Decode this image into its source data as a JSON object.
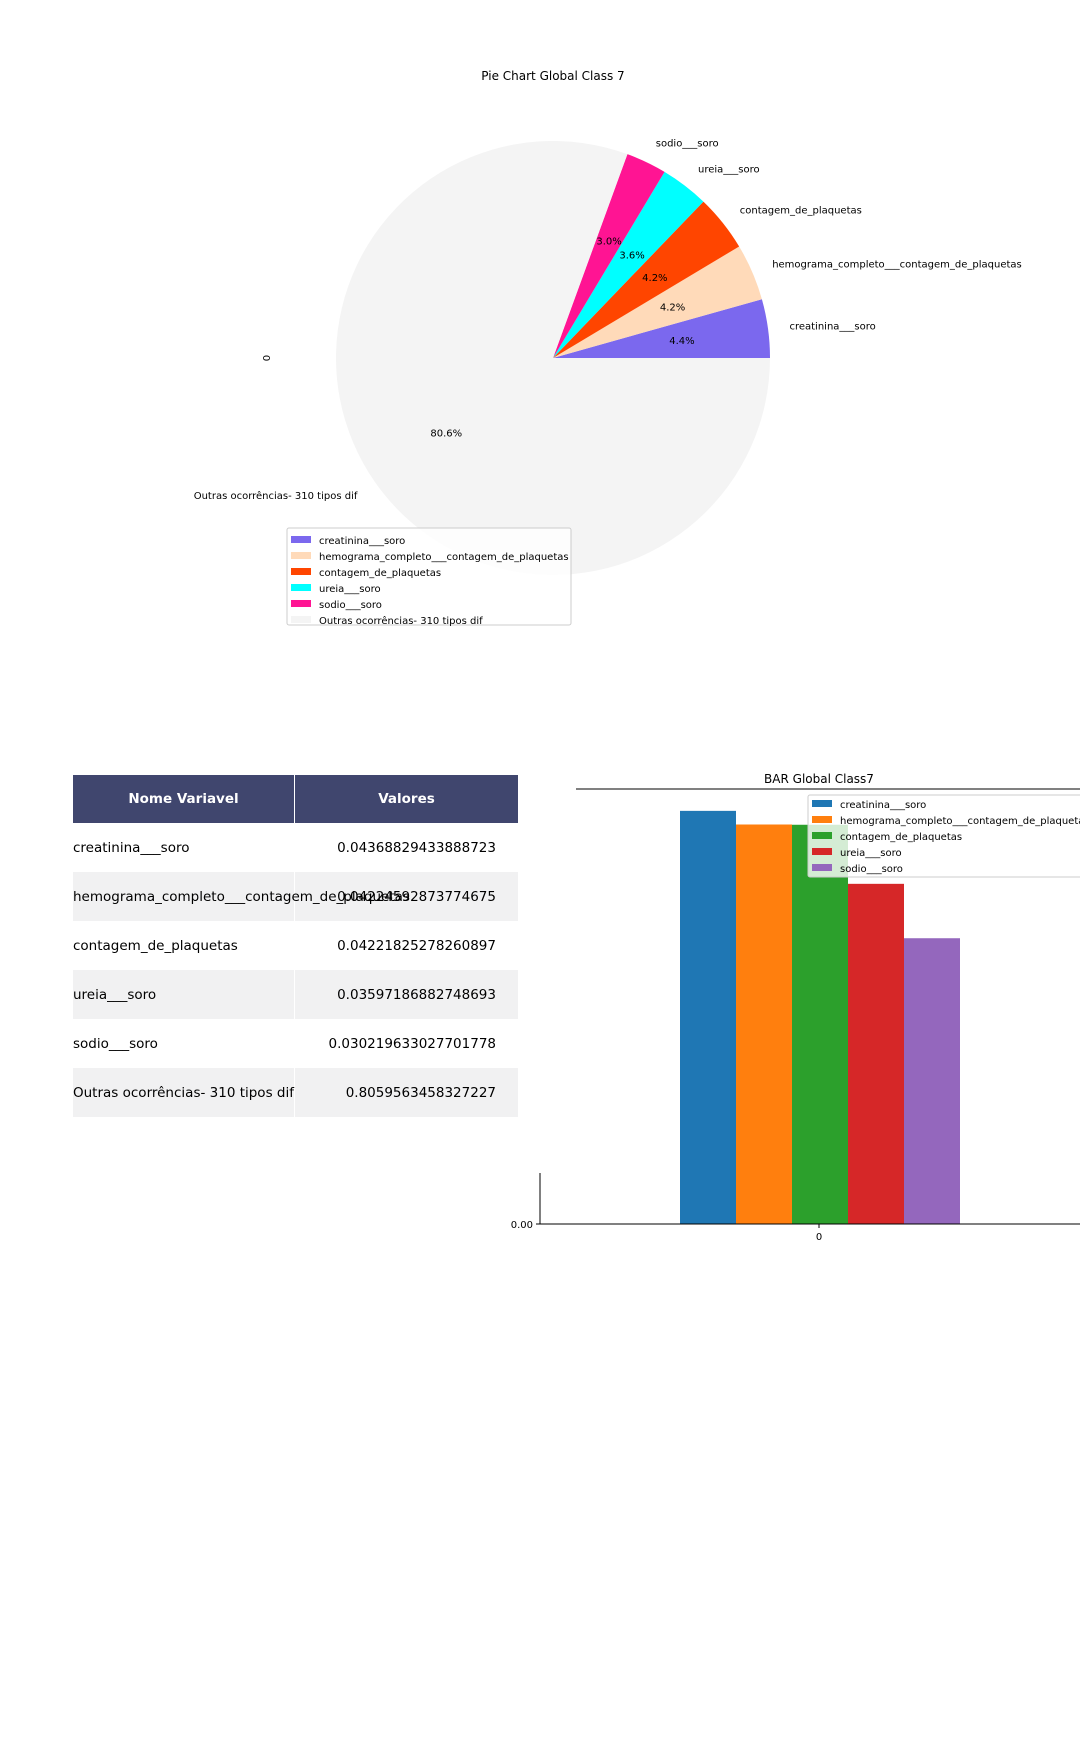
{
  "chart_data": [
    {
      "type": "pie",
      "title": "Pie Chart Global Class 7",
      "ylabel": "0",
      "labels": [
        "creatinina___soro",
        "hemograma_completo___contagem_de_plaquetas",
        "contagem_de_plaquetas",
        "ureia___soro",
        "sodio___soro",
        "Outras ocorrências-  310 tipos  dif"
      ],
      "values": [
        0.04368829433888723,
        0.04224592873774675,
        0.04221825278260897,
        0.03597186882748693,
        0.030219633027701778,
        0.8059563458327227
      ],
      "pct_labels": [
        "4.4%",
        "4.2%",
        "4.2%",
        "3.6%",
        "3.0%",
        "80.6%"
      ],
      "colors": [
        "#7b68ee",
        "#ffdab9",
        "#ff4500",
        "#00ffff",
        "#ff1493",
        "#f4f4f4"
      ],
      "legend": "bottom-center"
    },
    {
      "type": "table",
      "columns": [
        "Nome Variavel",
        "Valores"
      ],
      "rows": [
        [
          "creatinina___soro",
          "0.04368829433888723"
        ],
        [
          "hemograma_completo___contagem_de_plaquetas",
          "0.04224592873774675"
        ],
        [
          "contagem_de_plaquetas",
          "0.04221825278260897"
        ],
        [
          "ureia___soro",
          "0.03597186882748693"
        ],
        [
          "sodio___soro",
          "0.030219633027701778"
        ],
        [
          "Outras ocorrências-  310 tipos  dif",
          "0.8059563458327227"
        ]
      ]
    },
    {
      "type": "bar",
      "title": "BAR Global Class7",
      "categories": [
        "0"
      ],
      "series": [
        {
          "name": "creatinina___soro",
          "values": [
            0.04368829433888723
          ],
          "color": "#1f77b4"
        },
        {
          "name": "hemograma_completo___contagem_de_plaquetas",
          "values": [
            0.04224592873774675
          ],
          "color": "#ff7f0e"
        },
        {
          "name": "contagem_de_plaquetas",
          "values": [
            0.04221825278260897
          ],
          "color": "#2ca02c"
        },
        {
          "name": "ureia___soro",
          "values": [
            0.03597186882748693
          ],
          "color": "#d62728"
        },
        {
          "name": "sodio___soro",
          "values": [
            0.030219633027701778
          ],
          "color": "#9467bd"
        }
      ],
      "yticks": [
        "0.00"
      ],
      "legend": "top-right"
    }
  ]
}
